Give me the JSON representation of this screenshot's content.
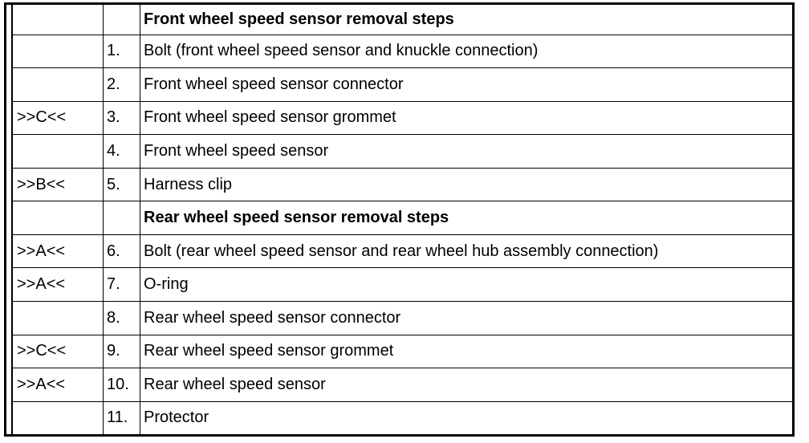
{
  "rows": [
    {
      "ref": "",
      "num": "",
      "text": "Front wheel speed sensor removal steps",
      "heading": true
    },
    {
      "ref": "",
      "num": "1.",
      "text": "Bolt (front wheel speed sensor and knuckle connection)"
    },
    {
      "ref": "",
      "num": "2.",
      "text": "Front wheel speed sensor connector"
    },
    {
      "ref": ">>C<<",
      "num": "3.",
      "text": "Front wheel speed sensor grommet"
    },
    {
      "ref": "",
      "num": "4.",
      "text": "Front wheel speed sensor"
    },
    {
      "ref": ">>B<<",
      "num": "5.",
      "text": "Harness clip"
    },
    {
      "ref": "",
      "num": "",
      "text": "Rear wheel speed sensor removal steps",
      "heading": true
    },
    {
      "ref": ">>A<<",
      "num": "6.",
      "text": "Bolt (rear wheel speed sensor and rear wheel hub assembly connection)"
    },
    {
      "ref": ">>A<<",
      "num": "7.",
      "text": "O-ring"
    },
    {
      "ref": "",
      "num": "8.",
      "text": "Rear wheel speed sensor connector"
    },
    {
      "ref": ">>C<<",
      "num": "9.",
      "text": "Rear wheel speed sensor grommet"
    },
    {
      "ref": ">>A<<",
      "num": "10.",
      "text": "Rear wheel speed sensor"
    },
    {
      "ref": "",
      "num": "11.",
      "text": "Protector"
    }
  ]
}
